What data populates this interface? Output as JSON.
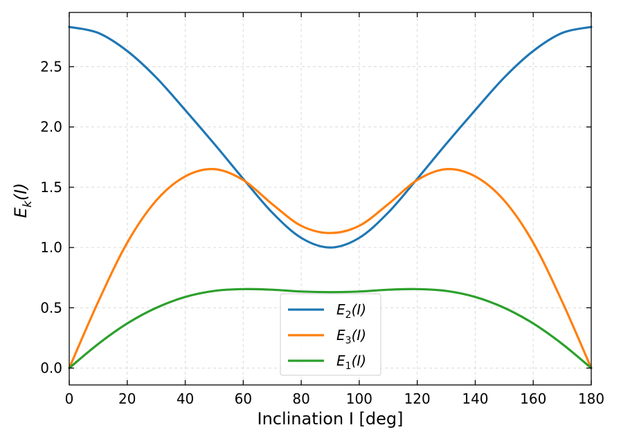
{
  "chart_data": {
    "type": "line",
    "xlabel": "Inclination I [deg]",
    "ylabel": {
      "base": "E",
      "sub": "k",
      "arg": "(I)"
    },
    "xlim": [
      0,
      180
    ],
    "ylim": [
      -0.14,
      2.95
    ],
    "xticks": [
      0,
      20,
      40,
      60,
      80,
      100,
      120,
      140,
      160,
      180
    ],
    "yticks": [
      0.0,
      0.5,
      1.0,
      1.5,
      2.0,
      2.5
    ],
    "ytick_labels": [
      "0.0",
      "0.5",
      "1.0",
      "1.5",
      "2.0",
      "2.5"
    ],
    "xtick_labels": [
      "0",
      "20",
      "40",
      "60",
      "80",
      "100",
      "120",
      "140",
      "160",
      "180"
    ],
    "grid": true,
    "legend_position": "lower-center",
    "series": [
      {
        "name": "E2(I)",
        "label_base": "E",
        "label_sub": "2",
        "label_arg": "(I)",
        "color": "#1f77b4",
        "x": [
          0,
          10,
          20,
          30,
          40,
          50,
          60,
          70,
          80,
          90,
          100,
          110,
          120,
          130,
          140,
          150,
          160,
          170,
          180
        ],
        "y": [
          2.83,
          2.78,
          2.63,
          2.41,
          2.14,
          1.86,
          1.57,
          1.29,
          1.08,
          1.0,
          1.08,
          1.29,
          1.57,
          1.86,
          2.14,
          2.41,
          2.63,
          2.78,
          2.83
        ]
      },
      {
        "name": "E3(I)",
        "label_base": "E",
        "label_sub": "3",
        "label_arg": "(I)",
        "color": "#ff7f0e",
        "x": [
          0,
          10,
          20,
          30,
          40,
          50,
          60,
          70,
          80,
          90,
          100,
          110,
          120,
          130,
          140,
          150,
          160,
          170,
          180
        ],
        "y": [
          0.0,
          0.55,
          1.04,
          1.39,
          1.59,
          1.65,
          1.56,
          1.36,
          1.18,
          1.12,
          1.18,
          1.36,
          1.56,
          1.65,
          1.59,
          1.39,
          1.04,
          0.55,
          0.0
        ]
      },
      {
        "name": "E1(I)",
        "label_base": "E",
        "label_sub": "1",
        "label_arg": "(I)",
        "color": "#2ca02c",
        "x": [
          0,
          10,
          20,
          30,
          40,
          50,
          60,
          70,
          80,
          90,
          100,
          110,
          120,
          130,
          140,
          150,
          160,
          170,
          180
        ],
        "y": [
          0.0,
          0.2,
          0.37,
          0.5,
          0.59,
          0.64,
          0.655,
          0.65,
          0.635,
          0.63,
          0.635,
          0.65,
          0.655,
          0.64,
          0.59,
          0.5,
          0.37,
          0.2,
          0.0
        ]
      }
    ]
  }
}
